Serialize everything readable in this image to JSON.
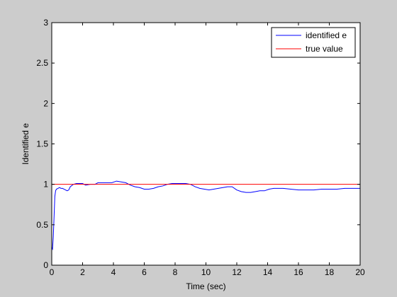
{
  "chart_data": {
    "type": "line",
    "title": "",
    "xlabel": "Time (sec)",
    "ylabel": "Identified e",
    "xlim": [
      0,
      20
    ],
    "ylim": [
      0,
      3
    ],
    "xticks": [
      0,
      2,
      4,
      6,
      8,
      10,
      12,
      14,
      16,
      18,
      20
    ],
    "yticks": [
      0,
      0.5,
      1,
      1.5,
      2,
      2.5,
      3
    ],
    "xtick_labels": [
      "0",
      "2",
      "4",
      "6",
      "8",
      "10",
      "12",
      "14",
      "16",
      "18",
      "20"
    ],
    "ytick_labels": [
      "0",
      "0.5",
      "1",
      "1.5",
      "2",
      "2.5",
      "3"
    ],
    "grid": false,
    "legend_position": "top-right",
    "series": [
      {
        "name": "identified e",
        "color": "#0000ff",
        "x": [
          0,
          0.05,
          0.1,
          0.15,
          0.2,
          0.25,
          0.3,
          0.4,
          0.5,
          0.6,
          0.7,
          0.8,
          0.9,
          1.0,
          1.1,
          1.2,
          1.4,
          1.6,
          1.8,
          2.0,
          2.2,
          2.5,
          2.8,
          3.0,
          3.3,
          3.6,
          3.9,
          4.2,
          4.5,
          4.8,
          5.1,
          5.4,
          5.7,
          6.0,
          6.3,
          6.6,
          6.9,
          7.2,
          7.5,
          7.8,
          8.1,
          8.4,
          8.7,
          9.0,
          9.3,
          9.6,
          9.9,
          10.2,
          10.5,
          10.8,
          11.1,
          11.4,
          11.7,
          12.0,
          12.3,
          12.6,
          12.9,
          13.2,
          13.5,
          13.8,
          14.1,
          14.4,
          14.7,
          15.0,
          15.5,
          16.0,
          16.5,
          17.0,
          17.5,
          18.0,
          18.5,
          19.0,
          19.5,
          20.0
        ],
        "y": [
          0.22,
          0.2,
          0.35,
          0.6,
          0.85,
          0.92,
          0.94,
          0.95,
          0.96,
          0.95,
          0.95,
          0.94,
          0.93,
          0.92,
          0.93,
          0.97,
          1.0,
          1.01,
          1.01,
          1.01,
          0.99,
          1.0,
          1.0,
          1.02,
          1.02,
          1.02,
          1.02,
          1.04,
          1.03,
          1.02,
          0.99,
          0.97,
          0.96,
          0.94,
          0.94,
          0.95,
          0.97,
          0.98,
          1.0,
          1.01,
          1.01,
          1.01,
          1.01,
          1.0,
          0.97,
          0.95,
          0.94,
          0.93,
          0.94,
          0.95,
          0.96,
          0.97,
          0.97,
          0.93,
          0.91,
          0.9,
          0.9,
          0.91,
          0.92,
          0.92,
          0.94,
          0.95,
          0.95,
          0.95,
          0.94,
          0.93,
          0.93,
          0.93,
          0.94,
          0.94,
          0.94,
          0.95,
          0.95,
          0.95
        ]
      },
      {
        "name": "true value",
        "color": "#ff0000",
        "x": [
          0,
          20
        ],
        "y": [
          1,
          1
        ]
      }
    ]
  }
}
